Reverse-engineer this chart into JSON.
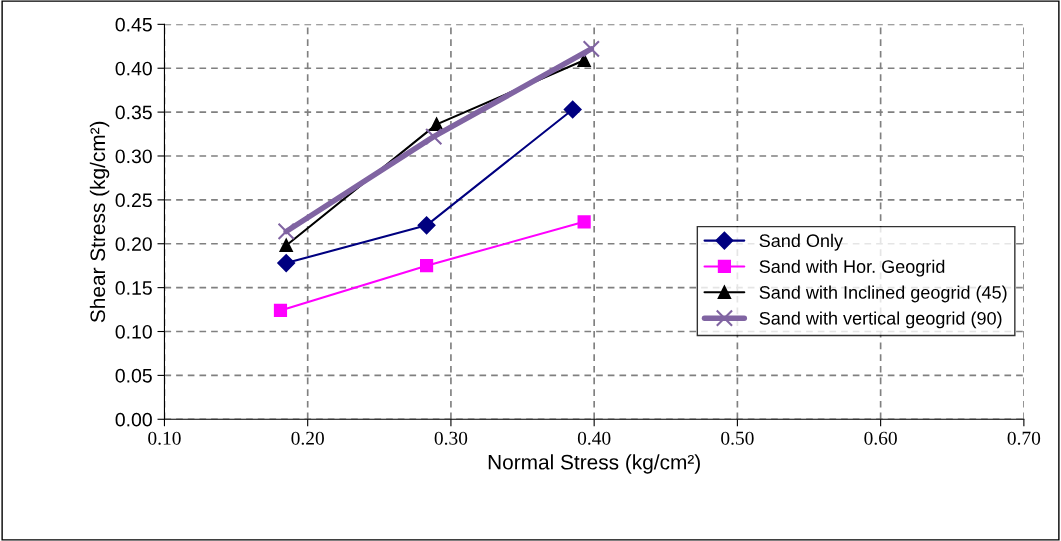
{
  "chart_data": {
    "type": "line",
    "xlabel": "Normal Stress (kg/cm²)",
    "ylabel": "Shear Stress (kg/cm²)",
    "xlim": [
      0.1,
      0.7
    ],
    "xticks": [
      {
        "value": 0.1,
        "label": "0.10"
      },
      {
        "value": 0.2,
        "label": "0.20"
      },
      {
        "value": 0.3,
        "label": "0.30"
      },
      {
        "value": 0.4,
        "label": "0.40"
      },
      {
        "value": 0.5,
        "label": "0.50"
      },
      {
        "value": 0.6,
        "label": "0.60"
      },
      {
        "value": 0.7,
        "label": "0.70"
      }
    ],
    "ylim": [
      0,
      0.45
    ],
    "yticks": [
      {
        "value": 0,
        "label": "0.00"
      },
      {
        "value": 0.05,
        "label": "0.05"
      },
      {
        "value": 0.1,
        "label": "0.10"
      },
      {
        "value": 0.15,
        "label": "0.15"
      },
      {
        "value": 0.2,
        "label": "0.20"
      },
      {
        "value": 0.25,
        "label": "0.25"
      },
      {
        "value": 0.3,
        "label": "0.30"
      },
      {
        "value": 0.35,
        "label": "0.35"
      },
      {
        "value": 0.4,
        "label": "0.40"
      },
      {
        "value": 0.45,
        "label": "0.45"
      }
    ],
    "grid": true,
    "legend": "right",
    "line_style": "solid",
    "series": [
      {
        "name": "Sand Only",
        "color": "#000080",
        "marker": "diamond",
        "x": [
          0.185,
          0.283,
          0.385
        ],
        "values": [
          0.178,
          0.221,
          0.353
        ]
      },
      {
        "name": "Sand with Hor. Geogrid",
        "color": "#ff00ff",
        "marker": "square",
        "x": [
          0.181,
          0.283,
          0.393
        ],
        "values": [
          0.124,
          0.175,
          0.225
        ]
      },
      {
        "name": "Sand with Inclined geogrid (45)",
        "color": "#000000",
        "marker": "triangle",
        "x": [
          0.185,
          0.29,
          0.393
        ],
        "values": [
          0.198,
          0.336,
          0.409
        ]
      },
      {
        "name": "Sand with vertical geogrid (90)",
        "color": "#8064a2",
        "marker": "cross",
        "x": [
          0.185,
          0.288,
          0.398
        ],
        "values": [
          0.214,
          0.322,
          0.422
        ]
      }
    ]
  }
}
